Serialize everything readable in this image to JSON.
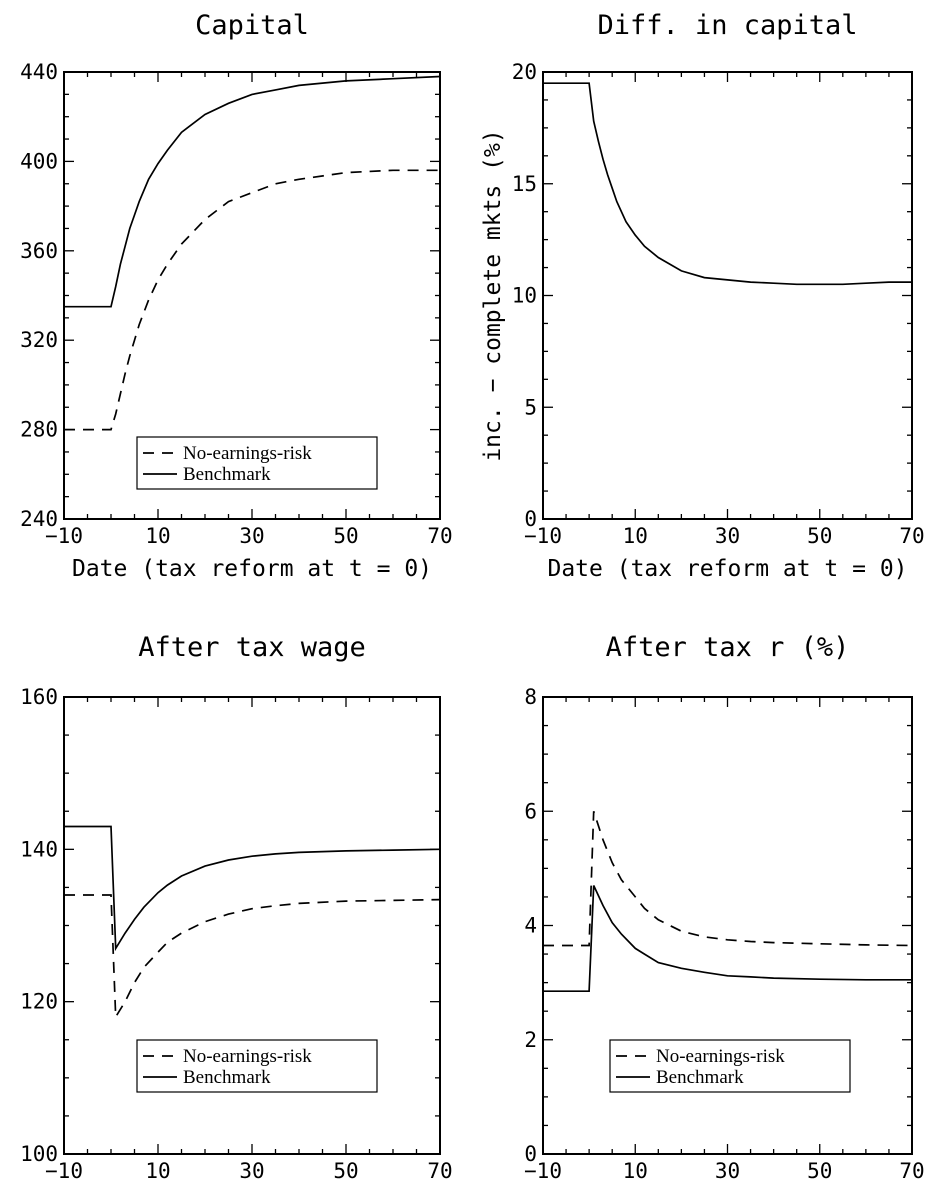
{
  "chart_data": [
    {
      "type": "line",
      "title": "Capital",
      "xlabel": "Date (tax reform at t = 0)",
      "ylabel": "",
      "xlim": [
        -10,
        70
      ],
      "ylim": [
        240,
        440
      ],
      "xticks": [
        -10,
        10,
        30,
        50,
        70
      ],
      "yticks": [
        240,
        280,
        320,
        360,
        400,
        440
      ],
      "xtick_labels": [
        "−10",
        "10",
        "30",
        "50",
        "70"
      ],
      "ytick_labels": [
        "240",
        "280",
        "320",
        "360",
        "400",
        "440"
      ],
      "legend": "bottom-center",
      "series": [
        {
          "name": "No-earnings-risk",
          "style": "dashed",
          "x": [
            -10,
            0,
            1,
            2,
            3,
            4,
            5,
            6,
            8,
            10,
            12,
            15,
            20,
            25,
            30,
            35,
            40,
            50,
            60,
            70
          ],
          "y": [
            280,
            280,
            287,
            296,
            305,
            313,
            320,
            327,
            338,
            347,
            354,
            363,
            374,
            382,
            386,
            390,
            392,
            395,
            396,
            396
          ]
        },
        {
          "name": "Benchmark",
          "style": "solid",
          "x": [
            -10,
            0,
            1,
            2,
            3,
            4,
            5,
            6,
            8,
            10,
            12,
            15,
            20,
            25,
            30,
            35,
            40,
            50,
            60,
            70
          ],
          "y": [
            335,
            335,
            344,
            354,
            362,
            370,
            376,
            382,
            392,
            399,
            405,
            413,
            421,
            426,
            430,
            432,
            434,
            436,
            437,
            438
          ]
        }
      ]
    },
    {
      "type": "line",
      "title": "Diff. in capital",
      "xlabel": "Date (tax reform at t = 0)",
      "ylabel": "inc. − complete mkts (%)",
      "xlim": [
        -10,
        70
      ],
      "ylim": [
        0,
        20
      ],
      "xticks": [
        -10,
        10,
        30,
        50,
        70
      ],
      "yticks": [
        0,
        5,
        10,
        15,
        20
      ],
      "xtick_labels": [
        "−10",
        "10",
        "30",
        "50",
        "70"
      ],
      "ytick_labels": [
        "0",
        "5",
        "10",
        "15",
        "20"
      ],
      "series": [
        {
          "style": "solid",
          "x": [
            -10,
            0,
            1,
            2,
            3,
            4,
            5,
            6,
            8,
            10,
            12,
            15,
            20,
            25,
            30,
            35,
            40,
            45,
            50,
            55,
            60,
            65,
            70
          ],
          "y": [
            19.5,
            19.5,
            17.8,
            16.9,
            16.1,
            15.4,
            14.8,
            14.2,
            13.3,
            12.7,
            12.2,
            11.7,
            11.1,
            10.8,
            10.7,
            10.6,
            10.55,
            10.5,
            10.5,
            10.5,
            10.55,
            10.6,
            10.6
          ]
        }
      ]
    },
    {
      "type": "line",
      "title": "After tax wage",
      "xlabel": "",
      "ylabel": "",
      "xlim": [
        -10,
        70
      ],
      "ylim": [
        100,
        160
      ],
      "xticks": [
        -10,
        10,
        30,
        50,
        70
      ],
      "yticks": [
        100,
        120,
        140,
        160
      ],
      "xtick_labels": [
        "−10",
        "10",
        "30",
        "50",
        "70"
      ],
      "ytick_labels": [
        "100",
        "120",
        "140",
        "160"
      ],
      "legend": "bottom-center",
      "series": [
        {
          "name": "No-earnings-risk",
          "style": "dashed",
          "x": [
            -10,
            0,
            1,
            3,
            5,
            7,
            10,
            12,
            15,
            20,
            25,
            30,
            35,
            40,
            50,
            60,
            70
          ],
          "y": [
            134,
            134,
            118,
            120,
            122.5,
            124.5,
            126.5,
            127.8,
            129,
            130.5,
            131.5,
            132.2,
            132.6,
            132.9,
            133.2,
            133.3,
            133.4
          ]
        },
        {
          "name": "Benchmark",
          "style": "solid",
          "x": [
            -10,
            0,
            1,
            3,
            5,
            7,
            10,
            12,
            15,
            20,
            25,
            30,
            35,
            40,
            50,
            60,
            70
          ],
          "y": [
            143,
            143,
            127,
            129,
            130.8,
            132.4,
            134.3,
            135.3,
            136.5,
            137.8,
            138.6,
            139.1,
            139.4,
            139.6,
            139.8,
            139.9,
            140
          ]
        }
      ]
    },
    {
      "type": "line",
      "title": "After tax r (%)",
      "xlabel": "",
      "ylabel": "",
      "xlim": [
        -10,
        70
      ],
      "ylim": [
        0,
        8
      ],
      "xticks": [
        -10,
        10,
        30,
        50,
        70
      ],
      "yticks": [
        0,
        2,
        4,
        6,
        8
      ],
      "xtick_labels": [
        "−10",
        "10",
        "30",
        "50",
        "70"
      ],
      "ytick_labels": [
        "0",
        "2",
        "4",
        "6",
        "8"
      ],
      "legend": "bottom-center",
      "series": [
        {
          "name": "No-earnings-risk",
          "style": "dashed",
          "x": [
            -10,
            0,
            1,
            3,
            5,
            7,
            10,
            12,
            15,
            20,
            25,
            30,
            35,
            40,
            50,
            60,
            70
          ],
          "y": [
            3.65,
            3.65,
            6.0,
            5.5,
            5.1,
            4.8,
            4.5,
            4.3,
            4.1,
            3.9,
            3.8,
            3.75,
            3.72,
            3.7,
            3.68,
            3.66,
            3.65
          ]
        },
        {
          "name": "Benchmark",
          "style": "solid",
          "x": [
            -10,
            0,
            1,
            3,
            5,
            7,
            10,
            12,
            15,
            20,
            25,
            30,
            35,
            40,
            50,
            60,
            70
          ],
          "y": [
            2.85,
            2.85,
            4.7,
            4.35,
            4.05,
            3.85,
            3.6,
            3.5,
            3.35,
            3.25,
            3.18,
            3.12,
            3.1,
            3.08,
            3.06,
            3.05,
            3.05
          ]
        }
      ]
    }
  ]
}
